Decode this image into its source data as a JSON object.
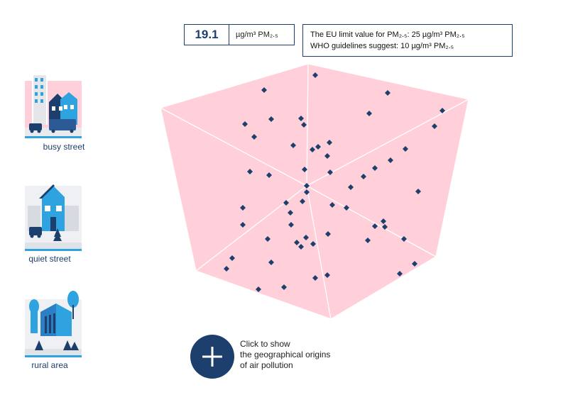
{
  "reading": {
    "value": "19.1",
    "unit": "µg/m³ PM₂.₅"
  },
  "info": {
    "line1": "The EU limit value for PM₂.₅: 25 µg/m³ PM₂.₅",
    "line2": "WHO guidelines suggest: 10 µg/m³ PM₂.₅"
  },
  "locations": [
    {
      "label": "busy street",
      "icon": "busy-street-icon"
    },
    {
      "label": "quiet street",
      "icon": "quiet-street-icon"
    },
    {
      "label": "rural area",
      "icon": "rural-area-icon"
    }
  ],
  "origins_button": {
    "text_line1": "Click to show",
    "text_line2": "the geographical origins",
    "text_line3": "of air pollution"
  },
  "colors": {
    "navy": "#1d3f6e",
    "cube_pink": "#ffd0da",
    "accent_blue": "#2ea3df"
  }
}
